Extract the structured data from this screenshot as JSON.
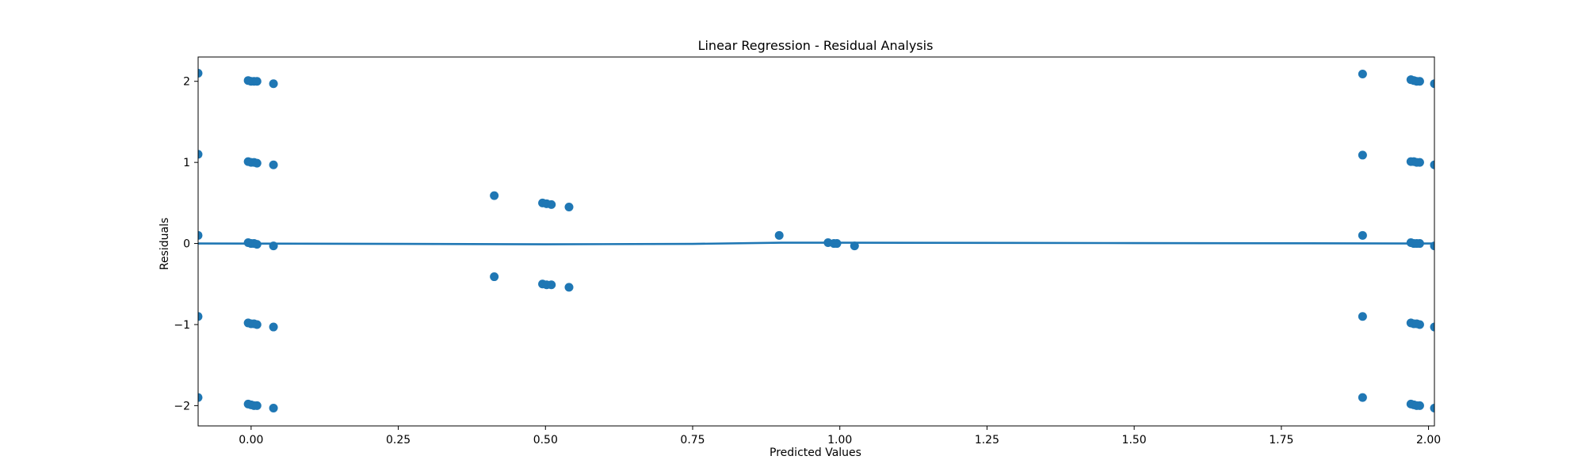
{
  "chart_data": {
    "type": "scatter",
    "title": "Linear Regression - Residual Analysis",
    "xlabel": "Predicted Values",
    "ylabel": "Residuals",
    "xlim": [
      -0.09,
      2.01
    ],
    "ylim": [
      -2.25,
      2.3
    ],
    "x_ticks": [
      0.0,
      0.25,
      0.5,
      0.75,
      1.0,
      1.25,
      1.5,
      1.75,
      2.0
    ],
    "x_tick_labels": [
      "0.00",
      "0.25",
      "0.50",
      "0.75",
      "1.00",
      "1.25",
      "1.50",
      "1.75",
      "2.00"
    ],
    "y_ticks": [
      -2,
      -1,
      0,
      1,
      2
    ],
    "y_tick_labels": [
      "−2",
      "−1",
      "0",
      "1",
      "2"
    ],
    "grid": false,
    "colors": {
      "points": "#1f77b4",
      "line": "#1f77b4"
    },
    "series": [
      {
        "points": [
          [
            -0.09,
            2.1
          ],
          [
            -0.09,
            1.1
          ],
          [
            -0.09,
            0.1
          ],
          [
            -0.09,
            -0.9
          ],
          [
            -0.09,
            -1.9
          ],
          [
            -0.005,
            2.01
          ],
          [
            0.0,
            2.0
          ],
          [
            0.005,
            2.0
          ],
          [
            0.01,
            2.0
          ],
          [
            0.038,
            1.97
          ],
          [
            -0.005,
            1.01
          ],
          [
            0.0,
            1.0
          ],
          [
            0.005,
            1.0
          ],
          [
            0.01,
            0.99
          ],
          [
            0.038,
            0.97
          ],
          [
            -0.005,
            0.01
          ],
          [
            0.0,
            0.0
          ],
          [
            0.005,
            0.0
          ],
          [
            0.01,
            -0.01
          ],
          [
            0.038,
            -0.03
          ],
          [
            -0.005,
            -0.98
          ],
          [
            0.0,
            -0.99
          ],
          [
            0.005,
            -0.99
          ],
          [
            0.01,
            -1.0
          ],
          [
            0.038,
            -1.03
          ],
          [
            -0.005,
            -1.98
          ],
          [
            0.0,
            -1.99
          ],
          [
            0.005,
            -2.0
          ],
          [
            0.01,
            -2.0
          ],
          [
            0.038,
            -2.03
          ],
          [
            0.413,
            0.59
          ],
          [
            0.413,
            -0.41
          ],
          [
            0.495,
            0.5
          ],
          [
            0.502,
            0.49
          ],
          [
            0.51,
            0.48
          ],
          [
            0.54,
            0.45
          ],
          [
            0.495,
            -0.5
          ],
          [
            0.502,
            -0.51
          ],
          [
            0.51,
            -0.51
          ],
          [
            0.54,
            -0.54
          ],
          [
            0.897,
            0.1
          ],
          [
            0.98,
            0.01
          ],
          [
            0.99,
            0.0
          ],
          [
            0.995,
            0.0
          ],
          [
            1.025,
            -0.03
          ],
          [
            1.888,
            2.09
          ],
          [
            1.888,
            1.09
          ],
          [
            1.888,
            0.1
          ],
          [
            1.888,
            -0.9
          ],
          [
            1.888,
            -1.9
          ],
          [
            1.97,
            2.02
          ],
          [
            1.975,
            2.01
          ],
          [
            1.98,
            2.0
          ],
          [
            1.985,
            2.0
          ],
          [
            1.97,
            1.01
          ],
          [
            1.975,
            1.01
          ],
          [
            1.98,
            1.0
          ],
          [
            1.985,
            1.0
          ],
          [
            1.97,
            0.01
          ],
          [
            1.975,
            0.0
          ],
          [
            1.98,
            0.0
          ],
          [
            1.985,
            0.0
          ],
          [
            1.97,
            -0.98
          ],
          [
            1.975,
            -0.99
          ],
          [
            1.98,
            -0.99
          ],
          [
            1.985,
            -1.0
          ],
          [
            1.97,
            -1.98
          ],
          [
            1.975,
            -1.99
          ],
          [
            1.98,
            -2.0
          ],
          [
            1.985,
            -2.0
          ],
          [
            2.01,
            1.97
          ],
          [
            2.01,
            0.97
          ],
          [
            2.01,
            -0.03
          ],
          [
            2.01,
            -1.03
          ],
          [
            2.01,
            -2.03
          ]
        ]
      },
      {
        "type": "line",
        "points": [
          [
            -0.09,
            0.0
          ],
          [
            0.25,
            -0.005
          ],
          [
            0.5,
            -0.01
          ],
          [
            0.75,
            -0.005
          ],
          [
            0.9,
            0.01
          ],
          [
            1.0,
            0.01
          ],
          [
            1.5,
            0.005
          ],
          [
            2.01,
            0.0
          ]
        ]
      }
    ]
  }
}
